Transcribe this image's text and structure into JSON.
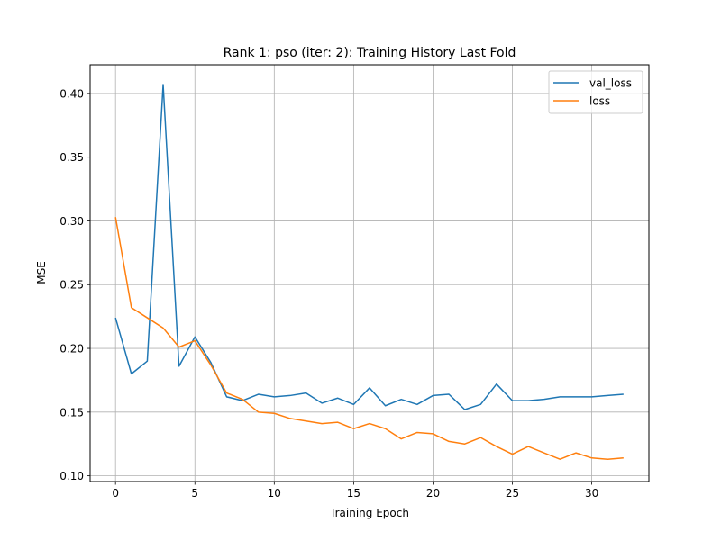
{
  "chart_data": {
    "type": "line",
    "title": "Rank 1: pso (iter: 2): Training History Last Fold",
    "xlabel": "Training Epoch",
    "ylabel": "MSE",
    "xlim": [
      -1.6,
      33.6
    ],
    "ylim": [
      0.0955,
      0.4225
    ],
    "xticks": [
      0,
      5,
      10,
      15,
      20,
      25,
      30
    ],
    "yticks": [
      0.1,
      0.15,
      0.2,
      0.25,
      0.3,
      0.35,
      0.4
    ],
    "xtick_labels": [
      "0",
      "5",
      "10",
      "15",
      "20",
      "25",
      "30"
    ],
    "ytick_labels": [
      "0.10",
      "0.15",
      "0.20",
      "0.25",
      "0.30",
      "0.35",
      "0.40"
    ],
    "grid": true,
    "legend_position": "top-right",
    "x": [
      0,
      1,
      2,
      3,
      4,
      5,
      6,
      7,
      8,
      9,
      10,
      11,
      12,
      13,
      14,
      15,
      16,
      17,
      18,
      19,
      20,
      21,
      22,
      23,
      24,
      25,
      26,
      27,
      28,
      29,
      30,
      31,
      32
    ],
    "series": [
      {
        "name": "val_loss",
        "color": "#1f77b4",
        "values": [
          0.224,
          0.18,
          0.19,
          0.407,
          0.186,
          0.209,
          0.189,
          0.162,
          0.159,
          0.164,
          0.162,
          0.163,
          0.165,
          0.157,
          0.161,
          0.156,
          0.169,
          0.155,
          0.16,
          0.156,
          0.163,
          0.164,
          0.152,
          0.156,
          0.172,
          0.159,
          0.159,
          0.16,
          0.162,
          0.162,
          0.162,
          0.163,
          0.164
        ]
      },
      {
        "name": "loss",
        "color": "#ff7f0e",
        "values": [
          0.303,
          0.232,
          0.224,
          0.216,
          0.201,
          0.206,
          0.187,
          0.165,
          0.16,
          0.15,
          0.149,
          0.145,
          0.143,
          0.141,
          0.142,
          0.137,
          0.141,
          0.137,
          0.129,
          0.134,
          0.133,
          0.127,
          0.125,
          0.13,
          0.123,
          0.117,
          0.123,
          0.118,
          0.113,
          0.118,
          0.114,
          0.113,
          0.114
        ]
      }
    ]
  }
}
